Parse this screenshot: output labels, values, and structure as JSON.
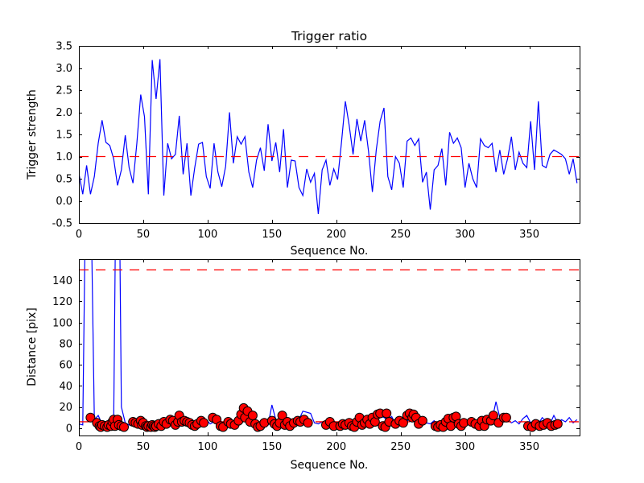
{
  "figure": {
    "background": "#ffffff",
    "colors": {
      "line": "#0000ff",
      "threshold": "#ff0000",
      "marker_fill": "#ff0000",
      "marker_edge": "#000000",
      "axis": "#000000",
      "text": "#000000"
    }
  },
  "chart_data": [
    {
      "type": "line",
      "title": "Trigger ratio",
      "xlabel": "Sequence No.",
      "ylabel": "Trigger strength",
      "xlim": [
        0,
        389
      ],
      "ylim": [
        -0.5,
        3.5
      ],
      "xticks": [
        0,
        50,
        100,
        150,
        200,
        250,
        300,
        350
      ],
      "xtick_labels": [
        "0",
        "50",
        "100",
        "150",
        "200",
        "250",
        "300",
        "350"
      ],
      "yticks": [
        -0.5,
        0.0,
        0.5,
        1.0,
        1.5,
        2.0,
        2.5,
        3.0,
        3.5
      ],
      "ytick_labels": [
        "-0.5",
        "0.0",
        "0.5",
        "1.0",
        "1.5",
        "2.0",
        "2.5",
        "3.0",
        "3.5"
      ],
      "grid": false,
      "legend": null,
      "thresholds": [
        1.0
      ],
      "series": [
        {
          "name": "trigger-strength",
          "x_start": 0,
          "x_step": 3,
          "values": [
            0.62,
            0.15,
            0.8,
            0.15,
            0.55,
            1.3,
            1.82,
            1.32,
            1.25,
            0.95,
            0.35,
            0.7,
            1.48,
            0.75,
            0.4,
            1.3,
            2.4,
            1.9,
            0.15,
            3.18,
            2.3,
            3.2,
            0.12,
            1.3,
            0.95,
            1.05,
            1.92,
            0.6,
            1.3,
            0.12,
            0.75,
            1.28,
            1.32,
            0.55,
            0.28,
            1.3,
            0.65,
            0.32,
            0.78,
            2.0,
            0.85,
            1.45,
            1.28,
            1.45,
            0.65,
            0.3,
            0.92,
            1.2,
            0.68,
            1.73,
            0.9,
            1.32,
            0.65,
            1.62,
            0.3,
            0.92,
            0.9,
            0.3,
            0.12,
            0.72,
            0.42,
            0.62,
            -0.3,
            0.7,
            0.92,
            0.35,
            0.72,
            0.48,
            1.32,
            2.25,
            1.7,
            1.05,
            1.85,
            1.35,
            1.82,
            1.12,
            0.2,
            1.15,
            1.8,
            2.1,
            0.55,
            0.25,
            1.0,
            0.85,
            0.3,
            1.35,
            1.42,
            1.25,
            1.4,
            0.42,
            0.65,
            -0.2,
            0.7,
            0.8,
            1.18,
            0.35,
            1.55,
            1.3,
            1.42,
            1.2,
            0.3,
            0.85,
            0.5,
            0.3,
            1.4,
            1.25,
            1.2,
            1.3,
            0.65,
            1.15,
            0.6,
            0.95,
            1.45,
            0.7,
            1.1,
            0.85,
            0.75,
            1.8,
            0.7,
            2.25,
            0.8,
            0.75,
            1.05,
            1.15,
            1.1,
            1.05,
            0.95,
            0.6,
            0.95,
            0.4
          ]
        }
      ]
    },
    {
      "type": "line+scatter",
      "title": "",
      "xlabel": "Sequence No.",
      "ylabel": "Distance [pix]",
      "xlim": [
        0,
        389
      ],
      "ylim": [
        -7,
        160
      ],
      "xticks": [
        0,
        50,
        100,
        150,
        200,
        250,
        300,
        350
      ],
      "xtick_labels": [
        "0",
        "50",
        "100",
        "150",
        "200",
        "250",
        "300",
        "350"
      ],
      "yticks": [
        0,
        20,
        40,
        60,
        80,
        100,
        120,
        140
      ],
      "ytick_labels": [
        "0",
        "20",
        "40",
        "60",
        "80",
        "100",
        "120",
        "140"
      ],
      "grid": false,
      "legend": null,
      "thresholds": [
        150,
        6
      ],
      "series": [
        {
          "name": "distance",
          "x_start": 0,
          "x_step": 3,
          "values": [
            4,
            3,
            300,
            250,
            8,
            12,
            4,
            3,
            3,
            4,
            400,
            20,
            5,
            3,
            2,
            4,
            3,
            5,
            3,
            2,
            3,
            2,
            4,
            6,
            8,
            10,
            6,
            5,
            8,
            6,
            4,
            5,
            7,
            8,
            4,
            6,
            5,
            3,
            2,
            4,
            3,
            6,
            8,
            12,
            10,
            8,
            6,
            4,
            5,
            3,
            22,
            8,
            5,
            4,
            6,
            3,
            5,
            8,
            16,
            15,
            14,
            5,
            4,
            6,
            3,
            5,
            4,
            3,
            6,
            5,
            4,
            7,
            6,
            8,
            10,
            7,
            9,
            6,
            12,
            10,
            8,
            11,
            4,
            3,
            9,
            6,
            12,
            10,
            4,
            3,
            5,
            4,
            7,
            3,
            5,
            8,
            12,
            6,
            4,
            8,
            5,
            9,
            4,
            6,
            3,
            5,
            4,
            8,
            25,
            10,
            6,
            8,
            5,
            7,
            4,
            9,
            12,
            5,
            8,
            4,
            10,
            6,
            4,
            12,
            5,
            8,
            6,
            10,
            5,
            8
          ]
        }
      ],
      "scatter": {
        "name": "detection-markers",
        "points": [
          [
            9,
            10
          ],
          [
            14,
            5
          ],
          [
            16,
            2
          ],
          [
            17,
            1
          ],
          [
            18,
            3
          ],
          [
            20,
            2
          ],
          [
            22,
            1
          ],
          [
            23,
            3
          ],
          [
            25,
            2
          ],
          [
            26,
            6
          ],
          [
            27,
            8
          ],
          [
            28,
            2
          ],
          [
            30,
            8
          ],
          [
            31,
            3
          ],
          [
            33,
            2
          ],
          [
            35,
            1
          ],
          [
            42,
            6
          ],
          [
            44,
            5
          ],
          [
            46,
            4
          ],
          [
            48,
            7
          ],
          [
            49,
            3
          ],
          [
            50,
            5
          ],
          [
            52,
            2
          ],
          [
            53,
            1
          ],
          [
            54,
            2
          ],
          [
            56,
            1
          ],
          [
            57,
            3
          ],
          [
            58,
            2
          ],
          [
            59,
            1
          ],
          [
            60,
            2
          ],
          [
            62,
            4
          ],
          [
            64,
            2
          ],
          [
            66,
            6
          ],
          [
            68,
            4
          ],
          [
            71,
            8
          ],
          [
            73,
            7
          ],
          [
            75,
            3
          ],
          [
            77,
            6
          ],
          [
            78,
            12
          ],
          [
            80,
            6
          ],
          [
            82,
            7
          ],
          [
            84,
            6
          ],
          [
            86,
            5
          ],
          [
            88,
            3
          ],
          [
            90,
            2
          ],
          [
            92,
            4
          ],
          [
            95,
            7
          ],
          [
            97,
            5
          ],
          [
            104,
            10
          ],
          [
            107,
            8
          ],
          [
            110,
            2
          ],
          [
            112,
            1
          ],
          [
            116,
            6
          ],
          [
            118,
            4
          ],
          [
            121,
            3
          ],
          [
            124,
            7
          ],
          [
            126,
            13
          ],
          [
            128,
            19
          ],
          [
            129,
            10
          ],
          [
            131,
            16
          ],
          [
            133,
            6
          ],
          [
            135,
            12
          ],
          [
            137,
            4
          ],
          [
            139,
            1
          ],
          [
            141,
            2
          ],
          [
            144,
            5
          ],
          [
            150,
            7
          ],
          [
            152,
            4
          ],
          [
            154,
            2
          ],
          [
            156,
            5
          ],
          [
            158,
            12
          ],
          [
            160,
            3
          ],
          [
            162,
            6
          ],
          [
            164,
            2
          ],
          [
            167,
            5
          ],
          [
            170,
            7
          ],
          [
            172,
            6
          ],
          [
            175,
            8
          ],
          [
            178,
            5
          ],
          [
            192,
            3
          ],
          [
            195,
            6
          ],
          [
            198,
            2
          ],
          [
            203,
            2
          ],
          [
            205,
            4
          ],
          [
            207,
            3
          ],
          [
            210,
            5
          ],
          [
            212,
            2
          ],
          [
            214,
            1
          ],
          [
            216,
            6
          ],
          [
            218,
            10
          ],
          [
            220,
            3
          ],
          [
            222,
            5
          ],
          [
            224,
            8
          ],
          [
            226,
            4
          ],
          [
            228,
            10
          ],
          [
            230,
            6
          ],
          [
            232,
            13
          ],
          [
            234,
            14
          ],
          [
            236,
            2
          ],
          [
            238,
            1
          ],
          [
            239,
            14
          ],
          [
            241,
            6
          ],
          [
            246,
            4
          ],
          [
            249,
            7
          ],
          [
            252,
            5
          ],
          [
            255,
            12
          ],
          [
            257,
            14
          ],
          [
            259,
            10
          ],
          [
            260,
            13
          ],
          [
            262,
            10
          ],
          [
            264,
            4
          ],
          [
            267,
            7
          ],
          [
            277,
            2
          ],
          [
            279,
            1
          ],
          [
            281,
            3
          ],
          [
            283,
            1
          ],
          [
            285,
            6
          ],
          [
            287,
            9
          ],
          [
            289,
            2
          ],
          [
            291,
            10
          ],
          [
            293,
            11
          ],
          [
            295,
            4
          ],
          [
            297,
            2
          ],
          [
            299,
            5
          ],
          [
            305,
            6
          ],
          [
            308,
            4
          ],
          [
            311,
            2
          ],
          [
            313,
            7
          ],
          [
            315,
            2
          ],
          [
            317,
            8
          ],
          [
            320,
            7
          ],
          [
            322,
            12
          ],
          [
            326,
            5
          ],
          [
            330,
            10
          ],
          [
            332,
            10
          ],
          [
            349,
            2
          ],
          [
            352,
            1
          ],
          [
            355,
            4
          ],
          [
            358,
            2
          ],
          [
            361,
            3
          ],
          [
            364,
            5
          ],
          [
            367,
            2
          ],
          [
            370,
            3
          ],
          [
            372,
            4
          ]
        ]
      }
    }
  ]
}
